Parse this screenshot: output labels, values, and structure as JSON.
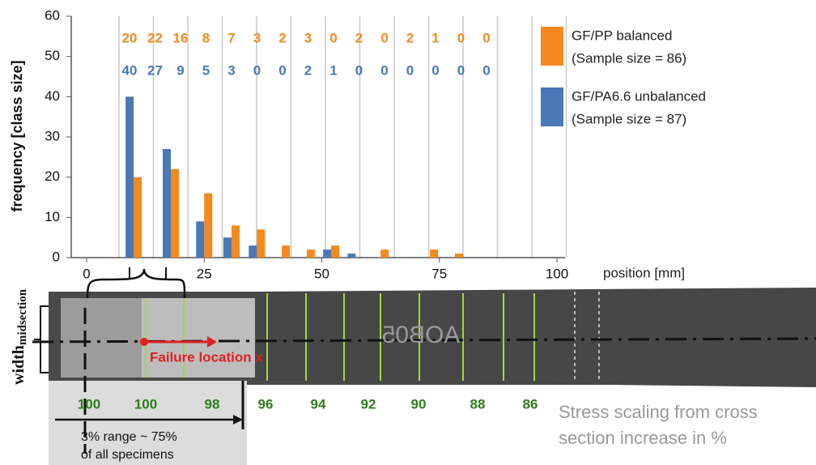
{
  "chart_data": {
    "type": "grouped-bar",
    "y_label": "frequency [class size]",
    "x_label": "position [mm]",
    "x": [
      10,
      17.9,
      25,
      30.8,
      36.2,
      41.5,
      46.8,
      52,
      57.2,
      62.5,
      67.8,
      73,
      78.3,
      83.5,
      88.8
    ],
    "series": [
      {
        "name": "GF/PP balanced",
        "note": "(Sample size = 86)",
        "color": "#f28a1e",
        "values": [
          20,
          22,
          16,
          8,
          7,
          3,
          2,
          3,
          0,
          2,
          0,
          2,
          1,
          0,
          0
        ]
      },
      {
        "name": "GF/PA6.6 unbalanced",
        "note": "(Sample size = 87)",
        "color": "#4a78b5",
        "values": [
          40,
          27,
          9,
          5,
          3,
          0,
          0,
          2,
          1,
          0,
          0,
          0,
          0,
          0,
          0
        ]
      }
    ],
    "xlim": [
      0,
      100
    ],
    "xticks": [
      0,
      25,
      50,
      75,
      100
    ],
    "ylim": [
      0,
      60
    ],
    "yticks": [
      0,
      10,
      20,
      30,
      40,
      50,
      60
    ]
  },
  "specimen": {
    "width_label": "width",
    "width_sub": "midsection",
    "failure_label": "Failure  location x",
    "marking": "AOB05",
    "scaling": [
      100,
      100,
      98,
      96,
      94,
      92,
      90,
      88,
      86
    ],
    "scaling_note_1": "Stress scaling from cross",
    "scaling_note_2": "section increase in %",
    "range_note_1": "3% range ~ 75%",
    "range_note_2": "of all specimens"
  }
}
